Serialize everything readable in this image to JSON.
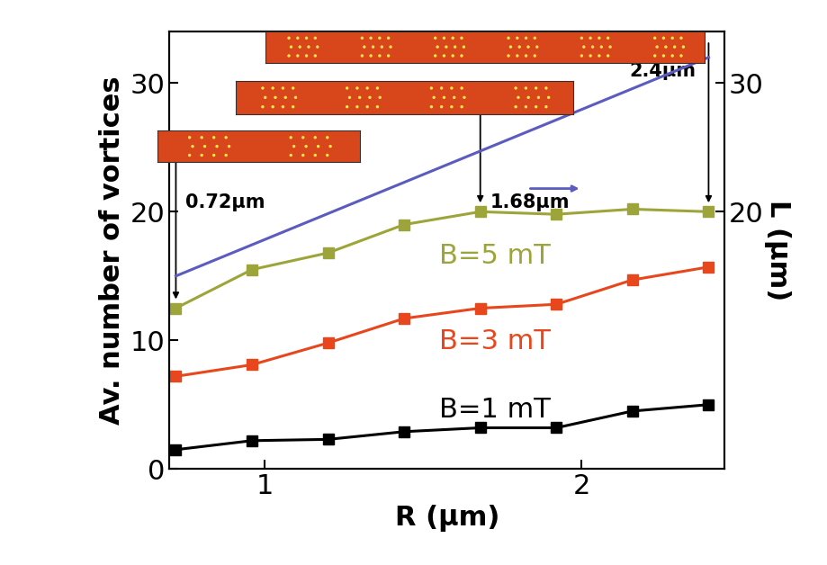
{
  "chart_data": {
    "type": "line",
    "xlabel": "R (μm)",
    "ylabel": "Av. number of vortices",
    "y2label": "L (μm)",
    "xlim": [
      0.7,
      2.45
    ],
    "xticks": [
      1,
      2
    ],
    "ylim": [
      0,
      34
    ],
    "yticks": [
      0,
      10,
      20,
      30
    ],
    "y2lim": [
      0,
      34
    ],
    "y2ticks": [
      20,
      30
    ],
    "series": [
      {
        "name": "B=5 mT",
        "color": "#9da53a",
        "marker": "square",
        "x": [
          0.72,
          0.96,
          1.2,
          1.44,
          1.68,
          1.92,
          2.16,
          2.4
        ],
        "values": [
          12.5,
          15.5,
          16.8,
          19.0,
          20.0,
          19.8,
          20.2,
          20.0
        ]
      },
      {
        "name": "B=3 mT",
        "color": "#e8461c",
        "marker": "square",
        "x": [
          0.72,
          0.96,
          1.2,
          1.44,
          1.68,
          1.92,
          2.16,
          2.4
        ],
        "values": [
          7.2,
          8.1,
          9.8,
          11.7,
          12.5,
          12.8,
          14.7,
          15.7
        ]
      },
      {
        "name": "B=1 mT",
        "color": "#000000",
        "marker": "square",
        "x": [
          0.72,
          0.96,
          1.2,
          1.44,
          1.68,
          1.92,
          2.16,
          2.4
        ],
        "values": [
          1.5,
          2.2,
          2.3,
          2.9,
          3.2,
          3.2,
          4.5,
          5.0
        ]
      },
      {
        "color": "#5b5bc0",
        "marker": "none",
        "axis": "y2",
        "x": [
          0.72,
          2.4
        ],
        "values": [
          15.0,
          32.0
        ]
      }
    ],
    "annotations": [
      "0.72μm",
      "1.68μm",
      "2.4μm"
    ]
  }
}
